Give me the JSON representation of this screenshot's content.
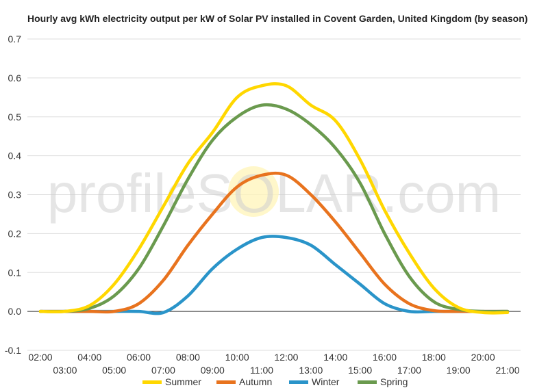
{
  "chart_data": {
    "type": "line",
    "title": "Hourly avg kWh electricity output per kW of Solar PV installed in Covent Garden, United Kingdom (by season)",
    "x_tick_labels": [
      "02:00",
      "03:00",
      "04:00",
      "05:00",
      "06:00",
      "07:00",
      "08:00",
      "09:00",
      "10:00",
      "11:00",
      "12:00",
      "13:00",
      "14:00",
      "15:00",
      "16:00",
      "17:00",
      "18:00",
      "19:00",
      "20:00",
      "21:00"
    ],
    "ylim": [
      -0.1,
      0.7
    ],
    "y_ticks": [
      "-0.1",
      "0.0",
      "0.1",
      "0.2",
      "0.3",
      "0.4",
      "0.5",
      "0.6",
      "0.7"
    ],
    "grid": true,
    "legend_position": "bottom",
    "watermark": "profileSOLAR.com",
    "series": [
      {
        "name": "Summer",
        "color": "#ffd700",
        "values": [
          0,
          0,
          0.015,
          0.07,
          0.16,
          0.27,
          0.38,
          0.46,
          0.55,
          0.58,
          0.58,
          0.53,
          0.49,
          0.39,
          0.26,
          0.15,
          0.06,
          0.01,
          -0.003,
          -0.003
        ]
      },
      {
        "name": "Autumn",
        "color": "#e8731e",
        "values": [
          0,
          0,
          0,
          0,
          0.02,
          0.08,
          0.17,
          0.25,
          0.32,
          0.35,
          0.35,
          0.3,
          0.23,
          0.15,
          0.07,
          0.02,
          0.002,
          0,
          0,
          0
        ]
      },
      {
        "name": "Winter",
        "color": "#2a94c9",
        "values": [
          0,
          0,
          0,
          0,
          0,
          -0.003,
          0.04,
          0.11,
          0.16,
          0.19,
          0.19,
          0.17,
          0.12,
          0.07,
          0.02,
          0,
          0,
          0,
          0,
          0
        ]
      },
      {
        "name": "Spring",
        "color": "#6a9a4e",
        "values": [
          0,
          0,
          0.008,
          0.04,
          0.11,
          0.22,
          0.34,
          0.44,
          0.5,
          0.53,
          0.52,
          0.48,
          0.42,
          0.33,
          0.2,
          0.09,
          0.025,
          0.005,
          0,
          0
        ]
      }
    ]
  }
}
